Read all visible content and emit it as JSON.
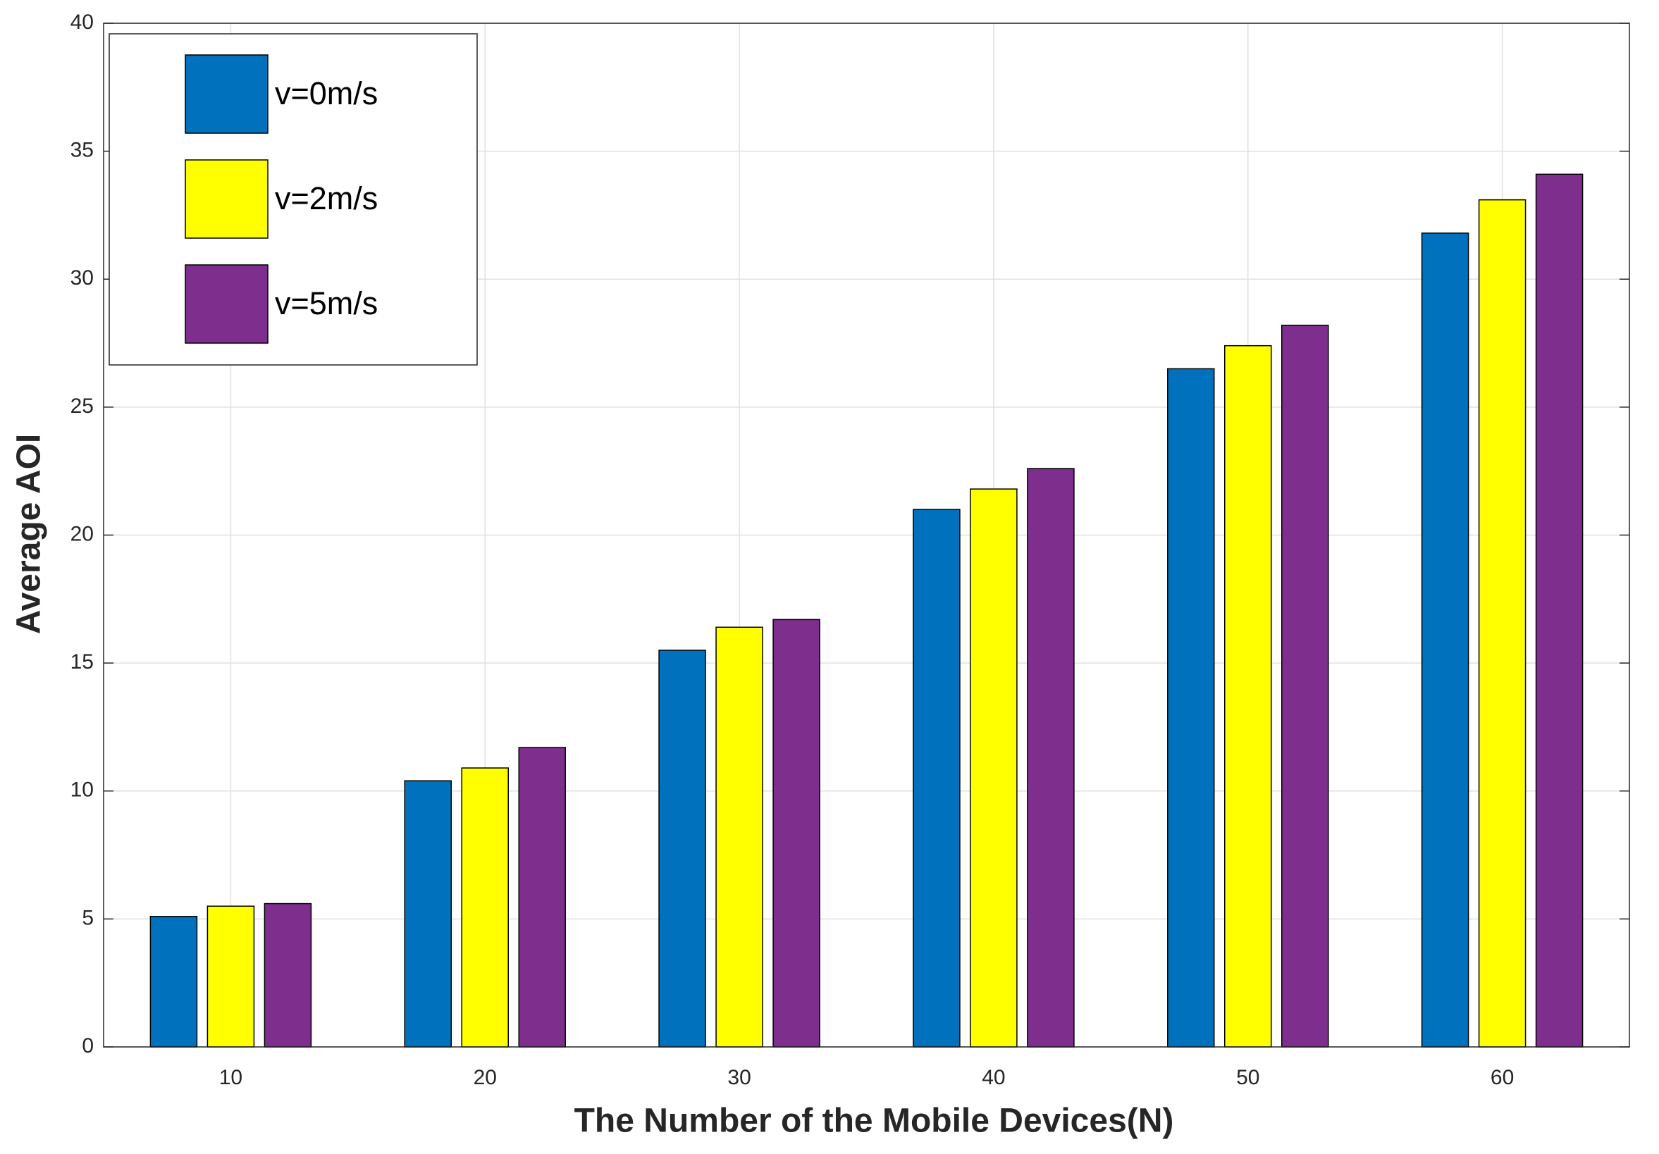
{
  "chart_data": {
    "type": "bar",
    "x_label": "The Number of the Mobile Devices(N)",
    "y_label": "Average AOI",
    "categories": [
      "10",
      "20",
      "30",
      "40",
      "50",
      "60"
    ],
    "series": [
      {
        "name": "v=0m/s",
        "color": "#0072bd",
        "values": [
          5.1,
          10.4,
          15.5,
          21.0,
          26.5,
          31.8
        ]
      },
      {
        "name": "v=2m/s",
        "color": "#ffff00",
        "values": [
          5.5,
          10.9,
          16.4,
          21.8,
          27.4,
          33.1
        ]
      },
      {
        "name": "v=5m/s",
        "color": "#7e2f8e",
        "values": [
          5.6,
          11.7,
          16.7,
          22.6,
          28.2,
          34.1
        ]
      }
    ],
    "ylim": [
      0,
      40
    ],
    "yticks": [
      0,
      5,
      10,
      15,
      20,
      25,
      30,
      35,
      40
    ],
    "grid": true,
    "legend": "northwest"
  }
}
